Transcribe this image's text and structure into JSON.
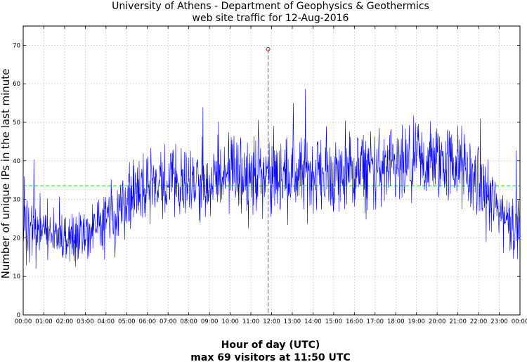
{
  "chart_data": {
    "type": "line",
    "title": "University of Athens - Department of Geophysics & Geothermics",
    "subtitle": "web site traffic for 12-Aug-2016",
    "ylabel": "Number of unique IPs in the last minute",
    "xlabel": "Hour of day (UTC)",
    "caption": "max 69 visitors at 11:50 UTC",
    "ylim": [
      0,
      75
    ],
    "xlim": [
      "00:00",
      "24:00"
    ],
    "grid": true,
    "y_ticks": [
      "0",
      "10",
      "20",
      "30",
      "40",
      "50",
      "60",
      "70"
    ],
    "x_ticks": [
      "00:00",
      "01:00",
      "02:00",
      "03:00",
      "04:00",
      "05:00",
      "06:00",
      "07:00",
      "08:00",
      "09:00",
      "10:00",
      "11:00",
      "12:00",
      "13:00",
      "14:00",
      "15:00",
      "16:00",
      "17:00",
      "18:00",
      "19:00",
      "20:00",
      "21:00",
      "22:00",
      "23:00",
      "00:00"
    ],
    "series": [
      {
        "color": "#0000ee",
        "resolution": "1 minute",
        "hourly_values": [
          {
            "hour": "00:00",
            "value": 23
          },
          {
            "hour": "01:00",
            "value": 21
          },
          {
            "hour": "02:00",
            "value": 20
          },
          {
            "hour": "03:00",
            "value": 20
          },
          {
            "hour": "04:00",
            "value": 24
          },
          {
            "hour": "05:00",
            "value": 30
          },
          {
            "hour": "06:00",
            "value": 34
          },
          {
            "hour": "07:00",
            "value": 34
          },
          {
            "hour": "08:00",
            "value": 35
          },
          {
            "hour": "09:00",
            "value": 35
          },
          {
            "hour": "10:00",
            "value": 36
          },
          {
            "hour": "11:00",
            "value": 37
          },
          {
            "hour": "12:00",
            "value": 36
          },
          {
            "hour": "13:00",
            "value": 36
          },
          {
            "hour": "14:00",
            "value": 37
          },
          {
            "hour": "15:00",
            "value": 36
          },
          {
            "hour": "16:00",
            "value": 37
          },
          {
            "hour": "17:00",
            "value": 38
          },
          {
            "hour": "18:00",
            "value": 37
          },
          {
            "hour": "19:00",
            "value": 39
          },
          {
            "hour": "20:00",
            "value": 40
          },
          {
            "hour": "21:00",
            "value": 39
          },
          {
            "hour": "22:00",
            "value": 34
          },
          {
            "hour": "23:00",
            "value": 27
          },
          {
            "hour": "24:00",
            "value": 22
          }
        ]
      }
    ],
    "reference_line": {
      "value": 33.5,
      "color": "#00bb00"
    },
    "max_marker": {
      "time": "11:50",
      "value": 69,
      "color": "#ff0000"
    }
  }
}
